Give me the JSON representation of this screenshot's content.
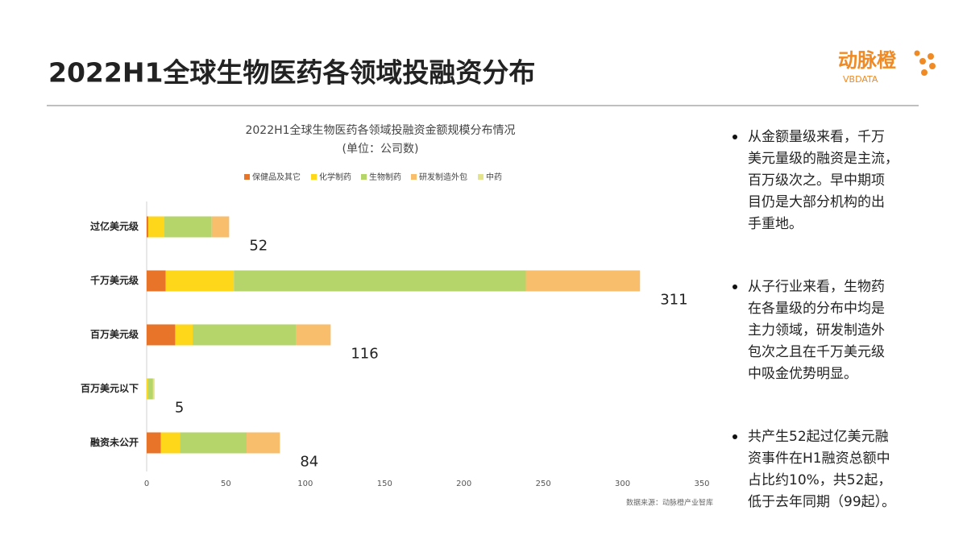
{
  "slide_title": "2022H1全球生物医药各领域投融资分布",
  "logo": {
    "name": "动脉橙",
    "sub": "VBDATA"
  },
  "chart_data": {
    "type": "stacked-bar-horizontal",
    "title": "2022H1全球生物医药各领域投融资金额规模分布情况",
    "subtitle": "(单位：公司数)",
    "categories": [
      "过亿美元级",
      "千万美元级",
      "百万美元级",
      "百万美元以下",
      "融资未公开"
    ],
    "series": [
      {
        "name": "保健品及其它",
        "color": "#e8742a",
        "values": [
          1,
          12,
          18,
          0,
          9
        ]
      },
      {
        "name": "化学制药",
        "color": "#ffd71a",
        "values": [
          10,
          43,
          11,
          1,
          12
        ]
      },
      {
        "name": "生物制药",
        "color": "#b5d56a",
        "values": [
          30,
          184,
          65,
          3,
          42
        ]
      },
      {
        "name": "研发制造外包",
        "color": "#f9be6b",
        "values": [
          11,
          72,
          22,
          0,
          21
        ]
      },
      {
        "name": "中药",
        "color": "#e4e48c",
        "values": [
          0,
          0,
          0,
          1,
          0
        ]
      }
    ],
    "totals": [
      52,
      311,
      116,
      5,
      84
    ],
    "xlim": [
      0,
      350
    ],
    "xticks": [
      0,
      50,
      100,
      150,
      200,
      250,
      300,
      350
    ],
    "source": "数据来源：动脉橙产业智库"
  },
  "notes": [
    [
      "从金额量级来看，千万",
      "美元量级的融资是主流，",
      "百万级次之。早中期项",
      "目仍是大部分机构的出",
      "手重地。"
    ],
    [
      "从子行业来看，生物药",
      "在各量级的分布中均是",
      "主力领域，研发制造外",
      "包次之且在千万美元级",
      "中吸金优势明显。"
    ],
    [
      "共产生52起过亿美元融",
      "资事件在H1融资总额中",
      "占比约10%，共52起，",
      "低于去年同期（99起）。"
    ]
  ]
}
